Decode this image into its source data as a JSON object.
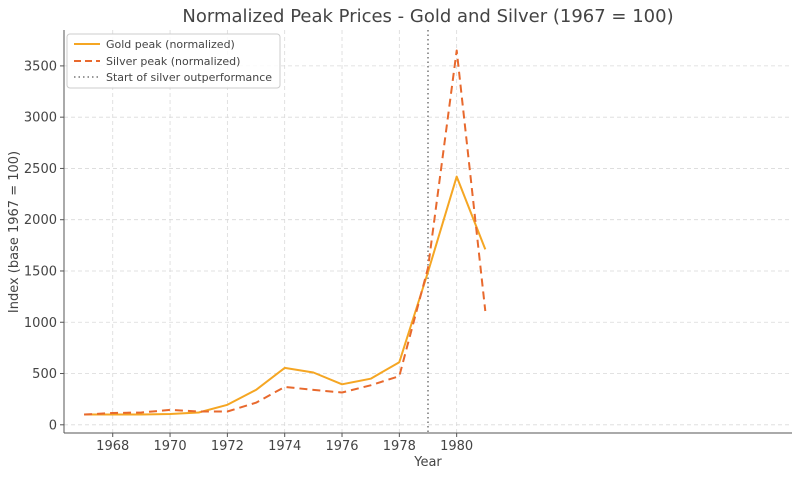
{
  "chart_data": {
    "type": "line",
    "title": "Normalized Peak Prices - Gold and Silver (1967 = 100)",
    "xlabel": "Year",
    "ylabel": "Index (base 1967 = 100)",
    "xlim": [
      1966.3,
      1991.7
    ],
    "ylim": [
      -80,
      3850
    ],
    "x_ticks": [
      1968,
      1970,
      1972,
      1974,
      1976,
      1978,
      1980
    ],
    "y_ticks": [
      0,
      500,
      1000,
      1500,
      2000,
      2500,
      3000,
      3500
    ],
    "grid": true,
    "legend_position": "top-left",
    "x": [
      1967,
      1968,
      1969,
      1970,
      1971,
      1972,
      1973,
      1974,
      1975,
      1976,
      1977,
      1978,
      1979,
      1980,
      1981
    ],
    "series": [
      {
        "name": "Gold peak (normalized)",
        "style": "solid",
        "color": "#f5a623",
        "values": [
          100,
          100,
          100,
          105,
          120,
          195,
          340,
          555,
          510,
          395,
          450,
          610,
          1490,
          2420,
          1710
        ]
      },
      {
        "name": "Silver peak (normalized)",
        "style": "dashed",
        "color": "#e8692d",
        "values": [
          100,
          115,
          120,
          145,
          130,
          130,
          215,
          370,
          340,
          315,
          385,
          475,
          1530,
          3650,
          1110
        ]
      }
    ],
    "annotations": [
      {
        "type": "vline",
        "x": 1979,
        "name": "Start of silver outperformance",
        "style": "dotted",
        "color": "#777777"
      }
    ]
  }
}
